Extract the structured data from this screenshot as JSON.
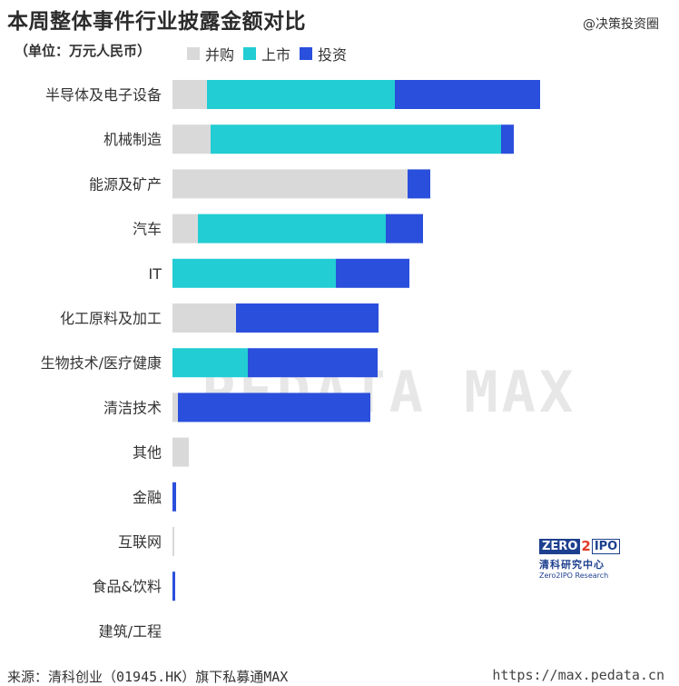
{
  "header": {
    "title": "本周整体事件行业披露金额对比",
    "unit": "（单位：万元人民币）",
    "source_tag": "@决策投资圈"
  },
  "footer": {
    "source": "来源：清科创业（01945.HK）旗下私募通MAX",
    "url": "https://max.pedata.cn"
  },
  "watermark": {
    "text": "PEDATA MAX"
  },
  "logo": {
    "brand_zero": "ZERO",
    "brand_two": "2",
    "brand_ipo": "IPO",
    "cn": "清科研究中心",
    "en": "Zero2IPO Research"
  },
  "colors": {
    "merger": "#d9d9d9",
    "ipo": "#22cdd3",
    "investment": "#2a4fdc"
  },
  "chart_data": {
    "type": "bar",
    "orientation": "horizontal",
    "stacked": true,
    "categories": [
      "半导体及电子设备",
      "机械制造",
      "能源及矿产",
      "汽车",
      "IT",
      "化工原料及加工",
      "生物技术/医疗健康",
      "清洁技术",
      "其他",
      "金融",
      "互联网",
      "食品&饮料",
      "建筑/工程"
    ],
    "series": [
      {
        "name": "并购",
        "values": [
          38,
          42,
          259,
          28,
          0,
          70,
          0,
          6,
          18,
          0,
          2,
          0,
          0
        ]
      },
      {
        "name": "上市",
        "values": [
          207,
          320,
          0,
          207,
          180,
          0,
          83,
          0,
          0,
          0,
          0,
          0,
          0
        ]
      },
      {
        "name": "投资",
        "values": [
          160,
          14,
          25,
          41,
          81,
          157,
          143,
          212,
          0,
          4,
          0,
          3,
          0
        ]
      }
    ],
    "legend_position": "top",
    "grid": false
  }
}
